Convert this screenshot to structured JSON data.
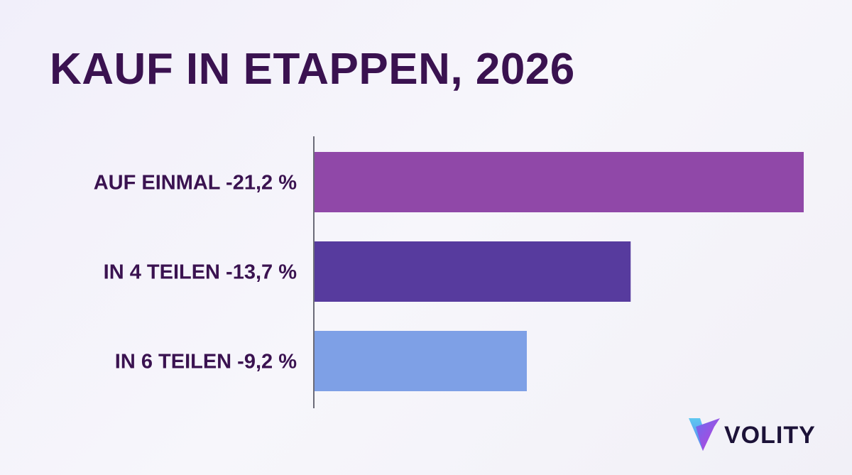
{
  "chart_data": {
    "type": "bar",
    "orientation": "horizontal",
    "title": "KAUF IN ETAPPEN, 2026",
    "categories": [
      "AUF EINMAL -21,2 %",
      "IN 4 TEILEN -13,7 %",
      "IN 6 TEILEN -9,2 %"
    ],
    "values": [
      21.2,
      13.7,
      9.2
    ],
    "colors": [
      "#9048a8",
      "#573b9e",
      "#7ea0e6"
    ],
    "xlim": [
      0,
      21.2
    ],
    "grid": false,
    "legend": "none"
  },
  "logo": {
    "text": "VOLITY",
    "icon": "volity-logo-icon"
  }
}
